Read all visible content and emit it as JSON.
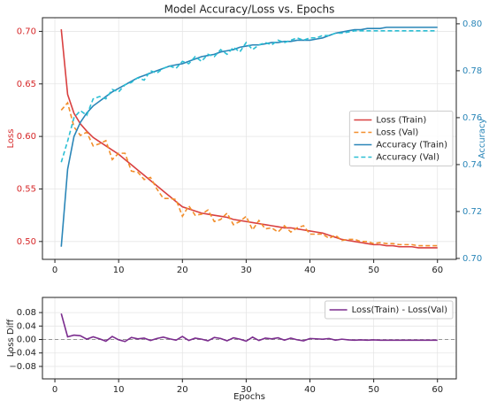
{
  "chart_data": [
    {
      "type": "line",
      "title": "Model Accuracy/Loss vs. Epochs",
      "ylabel": "Loss",
      "y2label": "Accuracy",
      "ylabel_color": "#d62728",
      "y2label_color": "#2a86b8",
      "x": [
        1,
        2,
        3,
        4,
        5,
        6,
        7,
        8,
        9,
        10,
        11,
        12,
        13,
        14,
        15,
        16,
        17,
        18,
        19,
        20,
        21,
        22,
        23,
        24,
        25,
        26,
        27,
        28,
        29,
        30,
        31,
        32,
        33,
        34,
        35,
        36,
        37,
        38,
        39,
        40,
        41,
        42,
        43,
        44,
        45,
        46,
        47,
        48,
        49,
        50,
        51,
        52,
        53,
        54,
        55,
        56,
        57,
        58,
        59,
        60
      ],
      "series": [
        {
          "name": "Loss (Train)",
          "color": "#d94040",
          "linestyle": "solid",
          "values": [
            0.702,
            0.64,
            0.622,
            0.612,
            0.605,
            0.599,
            0.595,
            0.591,
            0.587,
            0.583,
            0.578,
            0.573,
            0.568,
            0.563,
            0.558,
            0.553,
            0.548,
            0.543,
            0.538,
            0.533,
            0.531,
            0.529,
            0.527,
            0.526,
            0.525,
            0.524,
            0.523,
            0.521,
            0.52,
            0.519,
            0.518,
            0.517,
            0.516,
            0.515,
            0.514,
            0.513,
            0.513,
            0.512,
            0.511,
            0.51,
            0.509,
            0.508,
            0.506,
            0.504,
            0.502,
            0.501,
            0.5,
            0.499,
            0.498,
            0.497,
            0.497,
            0.496,
            0.496,
            0.495,
            0.495,
            0.495,
            0.494,
            0.494,
            0.494,
            0.494
          ]
        },
        {
          "name": "Loss (Val)",
          "color": "#f28e2b",
          "linestyle": "dashed",
          "values": [
            0.625,
            0.632,
            0.609,
            0.601,
            0.604,
            0.591,
            0.593,
            0.596,
            0.578,
            0.584,
            0.584,
            0.567,
            0.566,
            0.559,
            0.561,
            0.55,
            0.541,
            0.541,
            0.54,
            0.524,
            0.534,
            0.525,
            0.526,
            0.53,
            0.519,
            0.521,
            0.527,
            0.516,
            0.519,
            0.524,
            0.511,
            0.52,
            0.512,
            0.513,
            0.509,
            0.515,
            0.509,
            0.513,
            0.515,
            0.507,
            0.507,
            0.507,
            0.503,
            0.506,
            0.501,
            0.502,
            0.502,
            0.5,
            0.5,
            0.498,
            0.499,
            0.498,
            0.498,
            0.497,
            0.497,
            0.497,
            0.496,
            0.496,
            0.496,
            0.496
          ]
        },
        {
          "name": "Accuracy (Train)",
          "color": "#2a86b8",
          "linestyle": "solid",
          "axis": "y2",
          "values": [
            0.705,
            0.738,
            0.752,
            0.758,
            0.762,
            0.765,
            0.767,
            0.769,
            0.771,
            0.7725,
            0.774,
            0.7755,
            0.777,
            0.778,
            0.779,
            0.78,
            0.781,
            0.782,
            0.7825,
            0.783,
            0.784,
            0.785,
            0.786,
            0.7865,
            0.787,
            0.788,
            0.7885,
            0.789,
            0.79,
            0.7905,
            0.791,
            0.791,
            0.7915,
            0.792,
            0.792,
            0.7925,
            0.7925,
            0.793,
            0.793,
            0.793,
            0.7935,
            0.794,
            0.795,
            0.796,
            0.7965,
            0.797,
            0.7975,
            0.7975,
            0.798,
            0.798,
            0.798,
            0.7985,
            0.7985,
            0.7985,
            0.7985,
            0.7985,
            0.7985,
            0.7985,
            0.7985,
            0.7985
          ]
        },
        {
          "name": "Accuracy (Val)",
          "color": "#2bbfd4",
          "linestyle": "dashed",
          "axis": "y2",
          "values": [
            0.741,
            0.75,
            0.76,
            0.763,
            0.761,
            0.768,
            0.769,
            0.768,
            0.772,
            0.771,
            0.774,
            0.775,
            0.777,
            0.776,
            0.78,
            0.779,
            0.781,
            0.782,
            0.781,
            0.784,
            0.783,
            0.786,
            0.784,
            0.787,
            0.786,
            0.789,
            0.787,
            0.79,
            0.788,
            0.792,
            0.789,
            0.791,
            0.792,
            0.791,
            0.793,
            0.792,
            0.793,
            0.794,
            0.793,
            0.794,
            0.794,
            0.795,
            0.795,
            0.796,
            0.796,
            0.7965,
            0.797,
            0.797,
            0.797,
            0.797,
            0.797,
            0.797,
            0.797,
            0.797,
            0.797,
            0.797,
            0.797,
            0.797,
            0.797,
            0.797
          ]
        }
      ],
      "xlim": [
        -1.95,
        62.95
      ],
      "xticks": [
        0,
        10,
        20,
        30,
        40,
        50,
        60
      ],
      "ylim": [
        0.483,
        0.713
      ],
      "yticks": [
        {
          "value": 0.5,
          "label": "0.50"
        },
        {
          "value": 0.55,
          "label": "0.55"
        },
        {
          "value": 0.6,
          "label": "0.60"
        },
        {
          "value": 0.65,
          "label": "0.65"
        },
        {
          "value": 0.7,
          "label": "0.70"
        }
      ],
      "y2lim": [
        0.6996,
        0.8026
      ],
      "y2ticks": [
        {
          "value": 0.7,
          "label": "0.70"
        },
        {
          "value": 0.72,
          "label": "0.72"
        },
        {
          "value": 0.74,
          "label": "0.74"
        },
        {
          "value": 0.76,
          "label": "0.76"
        },
        {
          "value": 0.78,
          "label": "0.78"
        },
        {
          "value": 0.8,
          "label": "0.80"
        }
      ],
      "grid": true,
      "legend": "center right"
    },
    {
      "type": "line",
      "xlabel": "Epochs",
      "ylabel": "Loss Diff",
      "x": [
        1,
        2,
        3,
        4,
        5,
        6,
        7,
        8,
        9,
        10,
        11,
        12,
        13,
        14,
        15,
        16,
        17,
        18,
        19,
        20,
        21,
        22,
        23,
        24,
        25,
        26,
        27,
        28,
        29,
        30,
        31,
        32,
        33,
        34,
        35,
        36,
        37,
        38,
        39,
        40,
        41,
        42,
        43,
        44,
        45,
        46,
        47,
        48,
        49,
        50,
        51,
        52,
        53,
        54,
        55,
        56,
        57,
        58,
        59,
        60
      ],
      "series": [
        {
          "name": "Loss(Train) - Loss(Val)",
          "color": "#7b2d8e",
          "linestyle": "solid",
          "values": [
            0.077,
            0.008,
            0.013,
            0.011,
            0.001,
            0.008,
            0.002,
            -0.005,
            0.009,
            -0.001,
            -0.006,
            0.006,
            0.002,
            0.004,
            -0.003,
            0.003,
            0.007,
            0.002,
            -0.002,
            0.009,
            -0.003,
            0.004,
            0.001,
            -0.004,
            0.006,
            0.003,
            -0.004,
            0.005,
            0.001,
            -0.005,
            0.007,
            -0.003,
            0.004,
            0.002,
            0.005,
            -0.002,
            0.004,
            -0.001,
            -0.004,
            0.003,
            0.002,
            0.001,
            0.003,
            -0.002,
            0.001,
            -0.001,
            -0.002,
            -0.001,
            -0.002,
            -0.001,
            -0.002,
            -0.002,
            -0.002,
            -0.002,
            -0.002,
            -0.002,
            -0.002,
            -0.002,
            -0.002,
            -0.002
          ]
        }
      ],
      "reference_line": 0,
      "xlim": [
        -1.95,
        62.95
      ],
      "xticks": [
        0,
        10,
        20,
        30,
        40,
        50,
        60
      ],
      "ylim": [
        -0.117,
        0.125
      ],
      "yticks": [
        {
          "value": -0.08,
          "label": "−0.08"
        },
        {
          "value": -0.04,
          "label": "−0.04"
        },
        {
          "value": 0,
          "label": "0.00"
        },
        {
          "value": 0.04,
          "label": "0.04"
        },
        {
          "value": 0.08,
          "label": "0.08"
        }
      ],
      "grid": true,
      "legend": "upper right"
    }
  ]
}
